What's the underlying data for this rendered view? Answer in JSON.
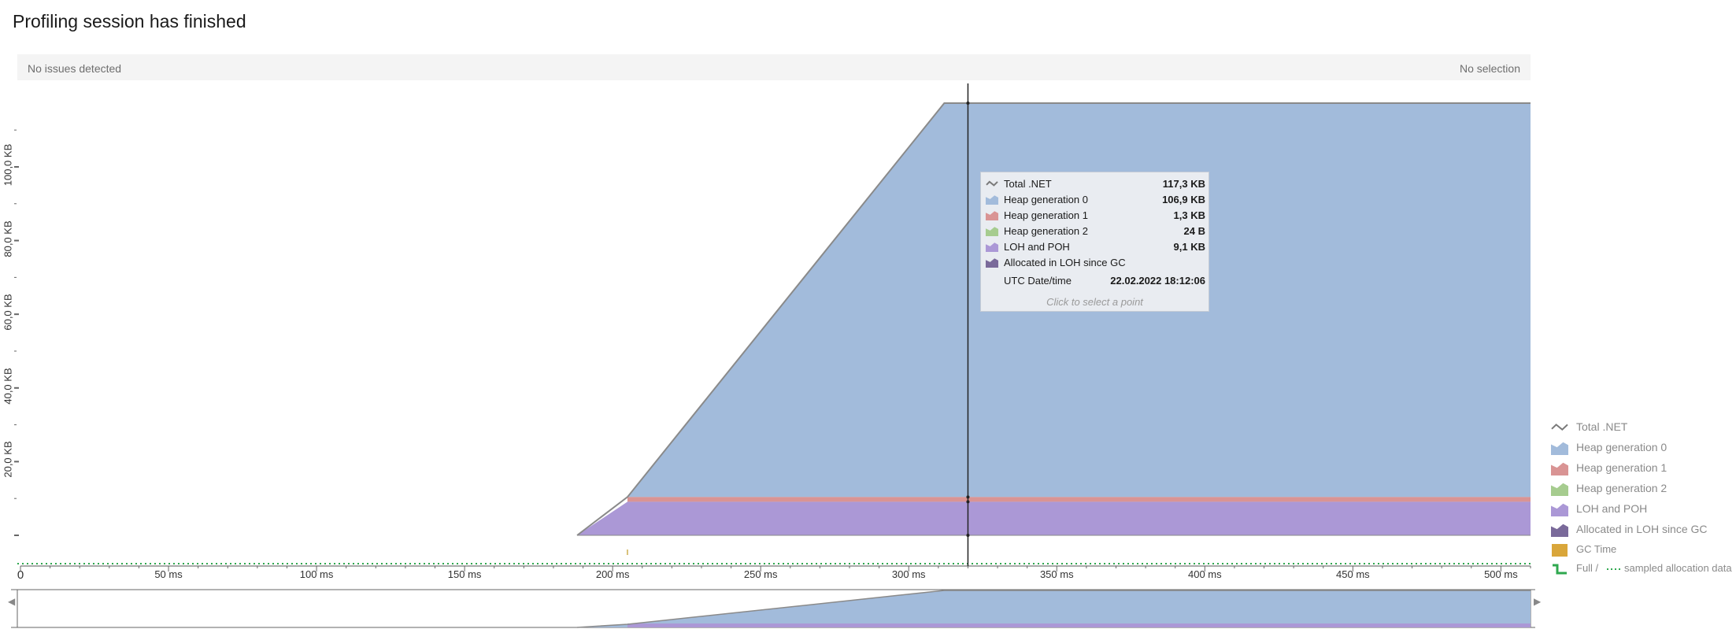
{
  "header": {
    "title": "Profiling session has finished"
  },
  "issues_bar": {
    "issues": "No issues detected",
    "selection": "No selection"
  },
  "chart_data": {
    "type": "area",
    "title": "",
    "x_unit": "ms",
    "x_tick_labels": [
      "0",
      "50 ms",
      "100 ms",
      "150 ms",
      "200 ms",
      "250 ms",
      "300 ms",
      "350 ms",
      "400 ms",
      "450 ms",
      "500 ms"
    ],
    "y_tick_labels": [
      "20,0 KB",
      "40,0 KB",
      "60,0 KB",
      "80,0 KB",
      "100,0 KB"
    ],
    "xlim": [
      0,
      510
    ],
    "ylim": [
      0,
      117.3
    ],
    "series": [
      {
        "name": "LOH and POH",
        "color": "#ab98d6",
        "x": [
          188,
          205,
          510
        ],
        "y": [
          0,
          9.1,
          9.1
        ]
      },
      {
        "name": "Heap generation 1",
        "color": "#d99494",
        "x": [
          205,
          510
        ],
        "y": [
          10.4,
          10.4
        ]
      },
      {
        "name": "Heap generation 0",
        "color": "#a2bbdb",
        "x": [
          205,
          312,
          510
        ],
        "y": [
          10.4,
          117.3,
          117.3
        ]
      },
      {
        "name": "Total .NET",
        "color": "#8c8c8c",
        "x": [
          188,
          205,
          312,
          510
        ],
        "y": [
          0,
          10.4,
          117.3,
          117.3
        ]
      }
    ],
    "cursor_x_ms": 320
  },
  "tooltip": {
    "rows": [
      {
        "label": "Total .NET",
        "value": "117,3 KB",
        "icon": "line-icon",
        "color": "#7a7a7a"
      },
      {
        "label": "Heap generation 0",
        "value": "106,9 KB",
        "icon": "area-icon",
        "color": "#a2bbdb"
      },
      {
        "label": "Heap generation 1",
        "value": "1,3 KB",
        "icon": "area-icon",
        "color": "#d99494"
      },
      {
        "label": "Heap generation 2",
        "value": "24 B",
        "icon": "area-icon",
        "color": "#a6cc8f"
      },
      {
        "label": "LOH and POH",
        "value": "9,1 KB",
        "icon": "area-icon",
        "color": "#ab98d6"
      },
      {
        "label": "Allocated in LOH since GC",
        "value": "",
        "icon": "area-icon",
        "color": "#7a6a9a"
      }
    ],
    "date_label": "UTC Date/time",
    "date_value": "22.02.2022 18:12:06",
    "hint": "Click to select a point"
  },
  "legend": [
    {
      "label": "Total .NET",
      "icon": "line-icon",
      "color": "#7a7a7a"
    },
    {
      "label": "Heap generation 0",
      "icon": "area-icon",
      "color": "#a2bbdb"
    },
    {
      "label": "Heap generation 1",
      "icon": "area-icon",
      "color": "#d99494"
    },
    {
      "label": "Heap generation 2",
      "icon": "area-icon",
      "color": "#a6cc8f"
    },
    {
      "label": "LOH and POH",
      "icon": "area-icon",
      "color": "#ab98d6"
    },
    {
      "label": "Allocated in LOH since GC",
      "icon": "area-icon",
      "color": "#7a6a9a"
    },
    {
      "label": "GC Time",
      "icon": "box-icon",
      "color": "#d9a63a"
    }
  ],
  "legend_alloc": {
    "full": "Full /",
    "sampled": "sampled allocation data"
  },
  "colors": {
    "green_dotted": "#2fa84f",
    "cursor": "#222222",
    "axis": "#444444"
  }
}
